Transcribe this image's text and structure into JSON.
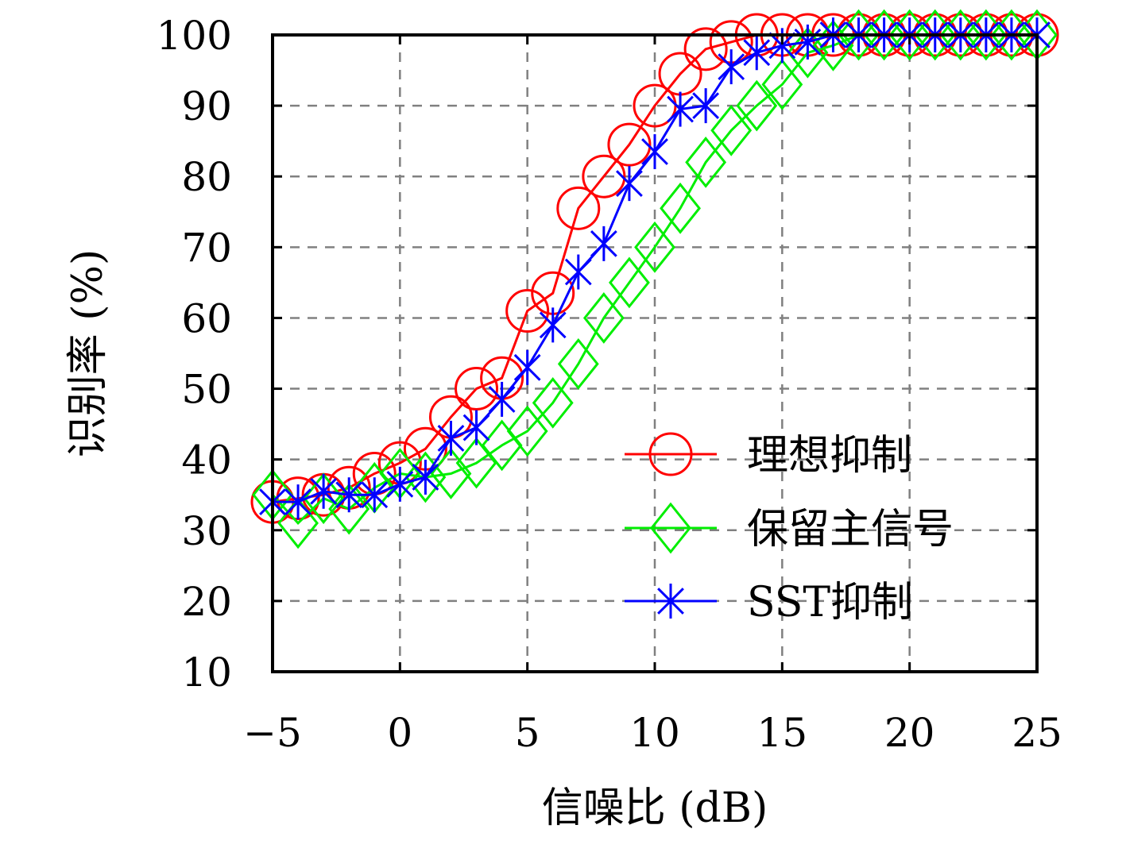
{
  "chart_data": {
    "type": "line",
    "title": "",
    "xlabel": "信噪比 (dB)",
    "ylabel": "识别率 (%)",
    "xlim": [
      -5,
      25
    ],
    "ylim": [
      10,
      100
    ],
    "xticks": [
      -5,
      0,
      5,
      10,
      15,
      20,
      25
    ],
    "yticks": [
      10,
      20,
      30,
      40,
      50,
      60,
      70,
      80,
      90,
      100
    ],
    "xtick_labels": [
      "−5",
      "0",
      "5",
      "10",
      "15",
      "20",
      "25"
    ],
    "ytick_labels": [
      "10",
      "20",
      "30",
      "40",
      "50",
      "60",
      "70",
      "80",
      "90",
      "100"
    ],
    "grid": true,
    "legend_position": "lower-right",
    "x": [
      -5,
      -4,
      -3,
      -2,
      -1,
      0,
      1,
      2,
      3,
      4,
      5,
      6,
      7,
      8,
      9,
      10,
      11,
      12,
      13,
      14,
      15,
      16,
      17,
      18,
      19,
      20,
      21,
      22,
      23,
      24,
      25
    ],
    "series": [
      {
        "name": "理想抑制",
        "color": "#ff0000",
        "marker": "circle",
        "values": [
          34,
          34.5,
          35,
          36,
          38,
          39.5,
          41.5,
          46,
          50,
          51.5,
          61,
          63.5,
          75.5,
          80,
          84.5,
          90,
          94.5,
          98,
          99,
          100,
          100,
          100,
          100,
          100,
          100,
          100,
          100,
          100,
          100,
          100,
          100
        ]
      },
      {
        "name": "保留主信号",
        "color": "#00ee00",
        "marker": "diamond",
        "values": [
          35,
          31,
          34.5,
          33,
          36,
          38,
          37.5,
          38,
          39.5,
          42,
          44,
          48,
          53.5,
          60,
          65,
          70,
          75.5,
          82,
          86.5,
          90,
          93,
          97.5,
          98.5,
          100,
          100,
          100,
          100,
          100,
          100,
          100,
          100
        ]
      },
      {
        "name": "SST抑制",
        "color": "#0000ff",
        "marker": "asterisk",
        "values": [
          34,
          34,
          35.5,
          35,
          35,
          36.5,
          37.5,
          43,
          44.5,
          48.5,
          53,
          59,
          66.5,
          70.5,
          79,
          83.5,
          89.5,
          90,
          95.5,
          97.5,
          98.5,
          99,
          100,
          100,
          100,
          100,
          100,
          100,
          100,
          100,
          100
        ]
      }
    ]
  }
}
